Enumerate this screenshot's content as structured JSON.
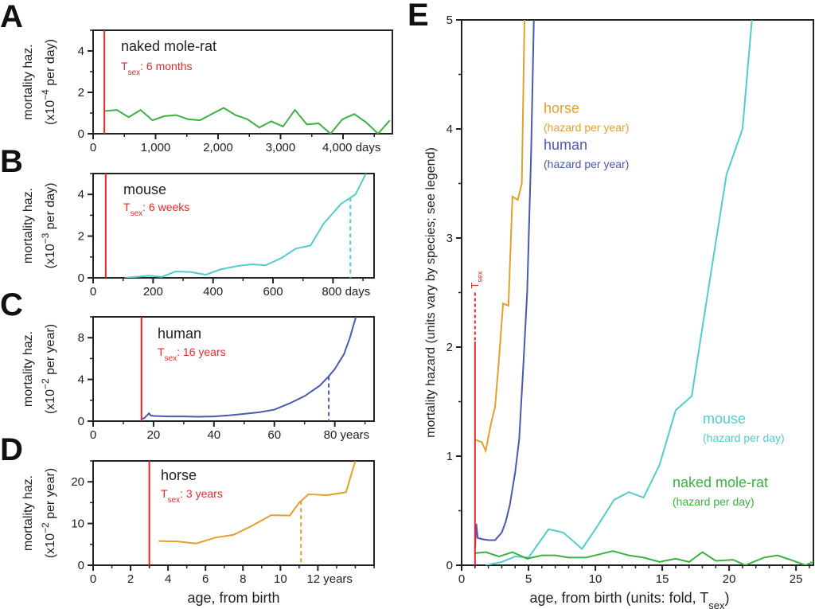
{
  "colors": {
    "nmr": "#3cb043",
    "mouse": "#52cccc",
    "human": "#4a58b0",
    "horse": "#e3a02c",
    "tsex": "#e02a2a",
    "axis": "#222222"
  },
  "chart_data": [
    {
      "panel": "A",
      "type": "line",
      "xlim": [
        0,
        4790
      ],
      "ylim": [
        0,
        5
      ],
      "xticks": [
        0,
        1000,
        2000,
        3000,
        4000
      ],
      "xtick_labels": [
        "0",
        "1,000",
        "2,000",
        "3,000",
        "4,000 days"
      ],
      "xminor": 500,
      "yticks": [
        0,
        2,
        4
      ],
      "ytick_labels": [
        "0",
        "2",
        "4"
      ],
      "yminor": 1,
      "ylabel": "mortality haz.",
      "ylabel2_pre": "(x10",
      "ylabel2_exp": "−4",
      "ylabel2_post": " per day)",
      "species": "naked mole-rat",
      "tsex_main": "T",
      "tsex_sub": "sex",
      "tsex_value": ": 6 months",
      "tsex_x": 180,
      "median_x": null,
      "color_key": "nmr",
      "x": [
        190,
        380,
        570,
        760,
        950,
        1140,
        1330,
        1520,
        1710,
        1900,
        2090,
        2280,
        2470,
        2660,
        2850,
        3040,
        3230,
        3420,
        3610,
        3800,
        3990,
        4180,
        4370,
        4560,
        4750
      ],
      "y": [
        1.1,
        1.15,
        0.8,
        1.15,
        0.65,
        0.85,
        0.9,
        0.7,
        0.65,
        0.95,
        1.25,
        0.9,
        0.7,
        0.3,
        0.6,
        0.35,
        1.15,
        0.45,
        0.5,
        0.0,
        0.7,
        0.95,
        0.55,
        0.0,
        0.65
      ]
    },
    {
      "panel": "B",
      "type": "line",
      "xlim": [
        0,
        937
      ],
      "ylim": [
        0,
        5
      ],
      "xticks": [
        0,
        200,
        400,
        600,
        800
      ],
      "xtick_labels": [
        "0",
        "200",
        "400",
        "600",
        "800 days"
      ],
      "xminor": 100,
      "yticks": [
        0,
        2,
        4
      ],
      "ytick_labels": [
        "0",
        "2",
        "4"
      ],
      "yminor": 1,
      "ylabel": "mortality haz.",
      "ylabel2_pre": "(x10",
      "ylabel2_exp": "−3",
      "ylabel2_post": " per day)",
      "species": "mouse",
      "tsex_main": "T",
      "tsex_sub": "sex",
      "tsex_value": ": 6 weeks",
      "tsex_x": 42,
      "median_x": 858,
      "color_key": "mouse",
      "x": [
        106,
        186,
        230,
        274,
        323,
        376,
        424,
        486,
        530,
        575,
        628,
        676,
        725,
        769,
        827,
        875,
        910
      ],
      "y": [
        0,
        0.1,
        0.05,
        0.3,
        0.28,
        0.15,
        0.4,
        0.58,
        0.65,
        0.6,
        0.95,
        1.4,
        1.55,
        2.6,
        3.55,
        4.0,
        5.0
      ]
    },
    {
      "panel": "C",
      "type": "line",
      "xlim": [
        0,
        93
      ],
      "ylim": [
        0,
        10
      ],
      "xticks": [
        0,
        20,
        40,
        60,
        80
      ],
      "xtick_labels": [
        "0",
        "20",
        "40",
        "60",
        "80 years"
      ],
      "xminor": 10,
      "yticks": [
        0,
        4,
        8
      ],
      "ytick_labels": [
        "0",
        "4",
        "8"
      ],
      "yminor": 2,
      "ylabel": "mortality haz.",
      "ylabel2_pre": "(x10",
      "ylabel2_exp": "−2",
      "ylabel2_post": " per year)",
      "species": "human",
      "tsex_main": "T",
      "tsex_sub": "sex",
      "tsex_value": ": 16 years",
      "tsex_x": 16,
      "median_x": 78,
      "color_key": "human",
      "x": [
        16,
        17,
        18.5,
        19,
        20,
        25,
        30,
        35,
        40,
        45,
        50,
        55,
        60,
        65,
        70,
        75,
        78,
        80,
        83,
        85,
        87
      ],
      "y": [
        0.2,
        0.3,
        0.75,
        0.55,
        0.5,
        0.45,
        0.45,
        0.42,
        0.45,
        0.55,
        0.7,
        0.85,
        1.1,
        1.7,
        2.4,
        3.4,
        4.3,
        5.0,
        6.4,
        8.0,
        10.0
      ]
    },
    {
      "panel": "D",
      "type": "line",
      "xlim": [
        0,
        15
      ],
      "ylim": [
        0,
        25
      ],
      "xticks": [
        0,
        2,
        4,
        6,
        8,
        10,
        12
      ],
      "xtick_labels": [
        "0",
        "2",
        "4",
        "6",
        "8",
        "10",
        "12 years"
      ],
      "xminor": 1,
      "yticks": [
        0,
        10,
        20
      ],
      "ytick_labels": [
        "0",
        "10",
        "20"
      ],
      "yminor": 5,
      "ylabel": "mortality haz.",
      "ylabel2_pre": "(x10",
      "ylabel2_exp": "−2",
      "ylabel2_post": " per year)",
      "xlabel": "age, from birth",
      "species": "horse",
      "tsex_main": "T",
      "tsex_sub": "sex",
      "tsex_value": ": 3 years",
      "tsex_x": 3,
      "median_x": 11.1,
      "color_key": "horse",
      "x": [
        3.5,
        4.5,
        5.5,
        6.5,
        7.5,
        8.5,
        9.5,
        10.5,
        11,
        11.5,
        12.5,
        13.5,
        14
      ],
      "y": [
        5.8,
        5.7,
        5.2,
        6.6,
        7.3,
        9.5,
        12,
        11.9,
        15,
        17,
        16.8,
        17.5,
        25
      ]
    },
    {
      "panel": "E",
      "type": "line",
      "xlim": [
        0,
        26.3
      ],
      "ylim": [
        0,
        5
      ],
      "xticks": [
        0,
        5,
        10,
        15,
        20,
        25
      ],
      "xtick_labels": [
        "0",
        "5",
        "10",
        "15",
        "20",
        "25"
      ],
      "xminor": 1,
      "yticks": [
        0,
        1,
        2,
        3,
        4,
        5
      ],
      "ytick_labels": [
        "0",
        "1",
        "2",
        "3",
        "4",
        "5"
      ],
      "yminor": 0.5,
      "ylabel": "mortality hazard (units vary by species; see legend)",
      "xlabel_pre": "age, from birth (units: fold, T",
      "xlabel_sub": "sex",
      "xlabel_post": ")",
      "tsex_main": "T",
      "tsex_sub": "sex",
      "tsex_x": 1,
      "tsex_solid_top": 2.05,
      "tsex_dash_top": 2.5,
      "series": [
        {
          "name": "horse",
          "unit": "(hazard per year)",
          "color_key": "horse",
          "x": [
            1,
            1.5,
            1.8,
            2.2,
            2.5,
            2.8,
            3.1,
            3.5,
            3.8,
            4.2,
            4.5,
            4.7
          ],
          "y": [
            1.15,
            1.13,
            1.05,
            1.3,
            1.45,
            1.9,
            2.4,
            2.38,
            3.38,
            3.35,
            3.5,
            5
          ]
        },
        {
          "name": "human",
          "unit": "(hazard per year)",
          "color_key": "human",
          "x": [
            1,
            1.1,
            1.2,
            1.5,
            2,
            2.5,
            3,
            3.3,
            3.6,
            4,
            4.3,
            4.6,
            4.9,
            5.2,
            5.4
          ],
          "y": [
            0.15,
            0.38,
            0.25,
            0.24,
            0.23,
            0.23,
            0.3,
            0.4,
            0.55,
            0.85,
            1.15,
            1.8,
            2.5,
            3.8,
            5
          ]
        },
        {
          "name": "mouse",
          "unit": "(hazard per day)",
          "color_key": "mouse",
          "x": [
            1.8,
            3,
            4,
            5,
            6.5,
            7.6,
            9,
            10,
            11.4,
            12.5,
            13.6,
            14.8,
            16,
            17.2,
            18.6,
            19.8,
            21,
            21.7
          ],
          "y": [
            0,
            0.03,
            0.08,
            0.07,
            0.33,
            0.3,
            0.15,
            0.33,
            0.6,
            0.67,
            0.62,
            0.92,
            1.42,
            1.55,
            2.65,
            3.58,
            4.0,
            5
          ]
        },
        {
          "name": "naked mole-rat",
          "unit": "(hazard per day)",
          "color_key": "nmr",
          "x": [
            1,
            1.8,
            2.8,
            3.8,
            4.9,
            6,
            7,
            8,
            9.3,
            11.3,
            12.5,
            13.6,
            14.8,
            16,
            17,
            18,
            19,
            20.3,
            21.2,
            22.6,
            23.6,
            24.6,
            25.7,
            27
          ],
          "y": [
            0.11,
            0.12,
            0.08,
            0.12,
            0.06,
            0.09,
            0.09,
            0.07,
            0.07,
            0.13,
            0.09,
            0.07,
            0.03,
            0.06,
            0.03,
            0.12,
            0.04,
            0.05,
            0,
            0.07,
            0.09,
            0.05,
            0,
            0.07
          ]
        }
      ]
    }
  ]
}
